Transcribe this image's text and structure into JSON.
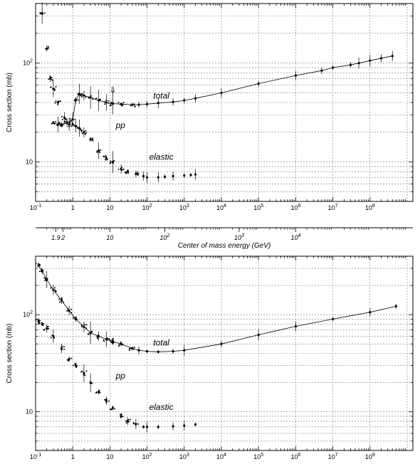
{
  "chart_data": [
    {
      "type": "scatter",
      "xscale": "log",
      "yscale": "log",
      "xlim": [
        0.1,
        1000000000.0
      ],
      "ylim": [
        4,
        400
      ],
      "ylabel": "Cross section (mb)",
      "x_tick_labels": [
        "10^-1",
        "1",
        "10",
        "10^2",
        "10^3",
        "10^4",
        "10^5",
        "10^6",
        "10^7",
        "10^8"
      ],
      "y_tick_labels": [
        "10",
        "10^2"
      ],
      "grid": true,
      "annotations": [
        "total",
        "pp",
        "elastic",
        "⇓"
      ],
      "series": [
        {
          "name": "total",
          "x": [
            0.3,
            0.4,
            0.5,
            0.7,
            1.0,
            1.2,
            1.5,
            2,
            3,
            5,
            8,
            12,
            20,
            40,
            60,
            100,
            200,
            500,
            1000,
            2000,
            10000.0,
            100000.0,
            1000000.0,
            5000000.0,
            10000000.0,
            30000000.0,
            50000000.0,
            100000000.0,
            200000000.0,
            400000000.0
          ],
          "y": [
            25,
            24,
            24,
            25,
            27,
            42,
            49,
            47,
            45,
            42,
            40,
            39,
            38.5,
            38,
            38,
            38.5,
            39.5,
            40.5,
            42,
            44,
            50,
            62,
            75,
            84,
            90,
            96,
            100,
            106,
            112,
            118
          ]
        },
        {
          "name": "elastic",
          "x": [
            0.15,
            0.2,
            0.25,
            0.3,
            0.4,
            0.6,
            0.8,
            1.0,
            1.2,
            1.5,
            2,
            3,
            5,
            8,
            12,
            20,
            30,
            50,
            80,
            100,
            200,
            300,
            500,
            1000,
            1500,
            2000
          ],
          "y": [
            320,
            140,
            70,
            55,
            40,
            28,
            24,
            24,
            23,
            22,
            20,
            17,
            13,
            11,
            10,
            8.5,
            8,
            7.6,
            7.2,
            7.0,
            7.0,
            7.1,
            7.2,
            7.3,
            7.4,
            7.5
          ]
        }
      ]
    },
    {
      "type": "scatter",
      "xscale": "log",
      "yscale": "log",
      "xlim": [
        0.1,
        1000000000.0
      ],
      "ylim": [
        4,
        400
      ],
      "ylabel": "Cross section (mb)",
      "xlabel": "Center of mass energy (GeV)",
      "x_tick_labels": [
        "10^-1",
        "1",
        "10",
        "10^2",
        "10^3",
        "10^4",
        "10^5",
        "10^6",
        "10^7",
        "10^8"
      ],
      "y_tick_labels": [
        "10",
        "10^2"
      ],
      "secondary_x_tick_labels": [
        "1.9",
        "2",
        "10",
        "10^2",
        "10^3",
        "10^4"
      ],
      "grid": true,
      "annotations": [
        "total",
        "pp",
        "elastic",
        "⇓"
      ],
      "series": [
        {
          "name": "total",
          "x": [
            0.12,
            0.15,
            0.2,
            0.3,
            0.5,
            0.8,
            1.2,
            2,
            3,
            5,
            8,
            12,
            20,
            40,
            60,
            100,
            200,
            500,
            1000,
            10000.0,
            100000.0,
            1000000.0,
            10000000.0,
            100000000.0,
            500000000.0
          ],
          "y": [
            320,
            280,
            230,
            180,
            140,
            110,
            90,
            75,
            65,
            60,
            56,
            53,
            50,
            45,
            43,
            42,
            41.5,
            42,
            43,
            50,
            62,
            76,
            90,
            106,
            122
          ]
        },
        {
          "name": "elastic",
          "x": [
            0.12,
            0.15,
            0.2,
            0.3,
            0.5,
            0.8,
            1.2,
            2,
            3,
            5,
            8,
            12,
            20,
            30,
            50,
            80,
            100,
            200,
            500,
            1000,
            2000
          ],
          "y": [
            85,
            80,
            72,
            60,
            45,
            35,
            30,
            25,
            20,
            16,
            13,
            11,
            9,
            8,
            7.5,
            7,
            7,
            7,
            7.1,
            7.2,
            7.4
          ]
        }
      ]
    }
  ]
}
